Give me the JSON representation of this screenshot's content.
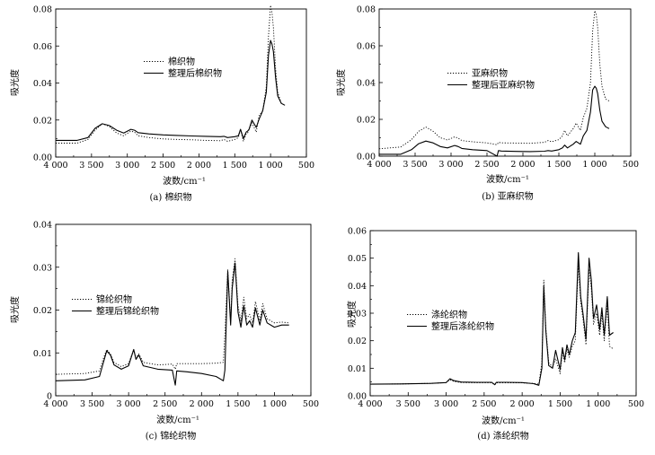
{
  "chart_data": [
    {
      "id": "a",
      "type": "line",
      "caption": "(a) 棉织物",
      "xlabel": "波数/cm⁻¹",
      "ylabel": "吸光度",
      "xlim": [
        4000,
        500
      ],
      "ylim": [
        0,
        0.08
      ],
      "xticks": [
        4000,
        3500,
        3000,
        2500,
        2000,
        1500,
        1000,
        500
      ],
      "xtick_labels": [
        "4 000",
        "3 500",
        "3 000",
        "2 500",
        "2 000",
        "1 500",
        "1 000",
        "500"
      ],
      "yticks": [
        0,
        0.02,
        0.04,
        0.06,
        0.08
      ],
      "ytick_labels": [
        "0.00",
        "0.02",
        "0.04",
        "0.06",
        "0.08"
      ],
      "legend_position": "center",
      "series": [
        {
          "name": "棉织物",
          "style": "dotted",
          "x": [
            4000,
            3700,
            3550,
            3450,
            3350,
            3250,
            3150,
            3050,
            2950,
            2900,
            2850,
            2700,
            2500,
            2300,
            2100,
            1900,
            1700,
            1650,
            1600,
            1500,
            1450,
            1420,
            1380,
            1340,
            1320,
            1300,
            1260,
            1200,
            1160,
            1110,
            1060,
            1030,
            1000,
            980,
            960,
            930,
            900,
            850,
            800
          ],
          "y": [
            0.0075,
            0.0075,
            0.0095,
            0.0145,
            0.018,
            0.0165,
            0.013,
            0.0115,
            0.014,
            0.0135,
            0.0115,
            0.0105,
            0.0098,
            0.0095,
            0.0093,
            0.009,
            0.0088,
            0.0095,
            0.0085,
            0.0095,
            0.0105,
            0.015,
            0.0085,
            0.0125,
            0.013,
            0.015,
            0.0185,
            0.0135,
            0.0225,
            0.025,
            0.038,
            0.065,
            0.082,
            0.078,
            0.07,
            0.048,
            0.035,
            0.029,
            0.028
          ]
        },
        {
          "name": "整理后棉织物",
          "style": "solid",
          "x": [
            4000,
            3700,
            3550,
            3450,
            3350,
            3250,
            3150,
            3050,
            2950,
            2900,
            2850,
            2700,
            2500,
            2300,
            2100,
            1900,
            1700,
            1650,
            1600,
            1500,
            1450,
            1420,
            1380,
            1340,
            1320,
            1300,
            1260,
            1200,
            1160,
            1110,
            1060,
            1030,
            1000,
            980,
            960,
            930,
            900,
            850,
            800
          ],
          "y": [
            0.009,
            0.009,
            0.0105,
            0.0155,
            0.018,
            0.017,
            0.0145,
            0.013,
            0.015,
            0.0145,
            0.0132,
            0.0125,
            0.012,
            0.0117,
            0.0114,
            0.0112,
            0.011,
            0.0112,
            0.0105,
            0.011,
            0.0115,
            0.015,
            0.01,
            0.0135,
            0.014,
            0.015,
            0.02,
            0.016,
            0.0205,
            0.025,
            0.035,
            0.055,
            0.063,
            0.061,
            0.057,
            0.043,
            0.033,
            0.029,
            0.028
          ]
        }
      ]
    },
    {
      "id": "b",
      "type": "line",
      "caption": "(b) 亚麻织物",
      "xlabel": "波数/cm⁻¹",
      "ylabel": "吸光度",
      "xlim": [
        4000,
        500
      ],
      "ylim": [
        0,
        0.08
      ],
      "xticks": [
        4000,
        3500,
        3000,
        2500,
        2000,
        1500,
        1000,
        500
      ],
      "xtick_labels": [
        "4 000",
        "3 500",
        "3 000",
        "2 500",
        "2 000",
        "1 500",
        "1 000",
        "500"
      ],
      "yticks": [
        0,
        0.02,
        0.04,
        0.06,
        0.08
      ],
      "ytick_labels": [
        "0.00",
        "0.02",
        "0.04",
        "0.06",
        "0.08"
      ],
      "legend_position": "center-right",
      "series": [
        {
          "name": "亚麻织物",
          "style": "dotted",
          "x": [
            4000,
            3700,
            3550,
            3450,
            3350,
            3250,
            3150,
            3050,
            2950,
            2900,
            2850,
            2700,
            2500,
            2360,
            2340,
            2300,
            2100,
            1900,
            1700,
            1650,
            1600,
            1500,
            1450,
            1420,
            1380,
            1340,
            1300,
            1260,
            1200,
            1160,
            1110,
            1060,
            1030,
            1000,
            980,
            960,
            930,
            900,
            850,
            800
          ],
          "y": [
            0.004,
            0.005,
            0.009,
            0.0135,
            0.0158,
            0.0135,
            0.01,
            0.0088,
            0.0105,
            0.0098,
            0.0085,
            0.0078,
            0.0072,
            0.0062,
            0.0075,
            0.0072,
            0.0071,
            0.007,
            0.0075,
            0.0085,
            0.0078,
            0.009,
            0.011,
            0.014,
            0.011,
            0.013,
            0.015,
            0.018,
            0.014,
            0.021,
            0.026,
            0.04,
            0.068,
            0.079,
            0.077,
            0.07,
            0.05,
            0.038,
            0.031,
            0.03
          ]
        },
        {
          "name": "整理后亚麻织物",
          "style": "solid",
          "x": [
            4000,
            3700,
            3550,
            3450,
            3350,
            3250,
            3150,
            3050,
            2950,
            2900,
            2850,
            2700,
            2500,
            2360,
            2340,
            2300,
            2100,
            1900,
            1700,
            1650,
            1600,
            1500,
            1450,
            1420,
            1380,
            1340,
            1300,
            1260,
            1200,
            1160,
            1110,
            1060,
            1030,
            1000,
            980,
            960,
            930,
            900,
            850,
            800
          ],
          "y": [
            0.001,
            0.001,
            0.0035,
            0.0068,
            0.0082,
            0.0072,
            0.0052,
            0.0045,
            0.0058,
            0.0052,
            0.0042,
            0.0035,
            0.003,
            0.0,
            0.003,
            0.0028,
            0.0026,
            0.0025,
            0.0027,
            0.003,
            0.0028,
            0.0035,
            0.0045,
            0.006,
            0.0045,
            0.0055,
            0.0065,
            0.008,
            0.0065,
            0.011,
            0.014,
            0.024,
            0.036,
            0.038,
            0.037,
            0.034,
            0.025,
            0.019,
            0.016,
            0.015
          ]
        }
      ]
    },
    {
      "id": "c",
      "type": "line",
      "caption": "(c) 锦纶织物",
      "xlabel": "波数/cm⁻¹",
      "ylabel": "吸光度",
      "xlim": [
        4000,
        500
      ],
      "ylim": [
        0,
        0.04
      ],
      "xticks": [
        4000,
        3500,
        3000,
        2500,
        2000,
        1500,
        1000,
        500
      ],
      "xtick_labels": [
        "4 000",
        "3 500",
        "3 000",
        "2 500",
        "2 000",
        "1 500",
        "1 000",
        "500"
      ],
      "yticks": [
        0,
        0.01,
        0.02,
        0.03,
        0.04
      ],
      "ytick_labels": [
        "0",
        "0.01",
        "0.02",
        "0.03",
        "0.04"
      ],
      "legend_position": "center-left",
      "series": [
        {
          "name": "锦纶织物",
          "style": "dotted",
          "x": [
            4000,
            3600,
            3400,
            3350,
            3300,
            3250,
            3200,
            3100,
            3000,
            2930,
            2900,
            2860,
            2800,
            2600,
            2400,
            2360,
            2340,
            2200,
            2000,
            1800,
            1700,
            1680,
            1640,
            1600,
            1580,
            1540,
            1500,
            1460,
            1420,
            1380,
            1340,
            1300,
            1260,
            1200,
            1160,
            1100,
            1000,
            900,
            800
          ],
          "y": [
            0.005,
            0.0052,
            0.0058,
            0.0085,
            0.0108,
            0.0098,
            0.0078,
            0.0068,
            0.0075,
            0.0108,
            0.0088,
            0.0098,
            0.0078,
            0.0072,
            0.0074,
            0.0062,
            0.0075,
            0.0075,
            0.0075,
            0.0076,
            0.0078,
            0.0145,
            0.0295,
            0.0175,
            0.027,
            0.032,
            0.021,
            0.0175,
            0.023,
            0.018,
            0.019,
            0.017,
            0.022,
            0.0175,
            0.0215,
            0.018,
            0.017,
            0.0172,
            0.017
          ]
        },
        {
          "name": "整理后锦纶织物",
          "style": "solid",
          "x": [
            4000,
            3600,
            3400,
            3350,
            3300,
            3250,
            3200,
            3100,
            3000,
            2930,
            2900,
            2860,
            2800,
            2600,
            2400,
            2360,
            2340,
            2200,
            2000,
            1800,
            1700,
            1680,
            1640,
            1600,
            1580,
            1540,
            1500,
            1460,
            1420,
            1380,
            1340,
            1300,
            1260,
            1200,
            1160,
            1100,
            1000,
            900,
            800
          ],
          "y": [
            0.0035,
            0.0037,
            0.0045,
            0.0075,
            0.0105,
            0.0095,
            0.0072,
            0.0062,
            0.007,
            0.0108,
            0.0085,
            0.0095,
            0.007,
            0.0062,
            0.006,
            0.0025,
            0.0058,
            0.0056,
            0.0052,
            0.0045,
            0.0035,
            0.006,
            0.029,
            0.0165,
            0.025,
            0.031,
            0.0195,
            0.016,
            0.021,
            0.0165,
            0.0175,
            0.016,
            0.0205,
            0.0165,
            0.02,
            0.017,
            0.016,
            0.0165,
            0.0165
          ]
        }
      ]
    },
    {
      "id": "d",
      "type": "line",
      "caption": "(d) 涤纶织物",
      "xlabel": "波数/cm⁻¹",
      "ylabel": "吸光度",
      "xlim": [
        4000,
        500
      ],
      "ylim": [
        0,
        0.06
      ],
      "xticks": [
        4000,
        3500,
        3000,
        2500,
        2000,
        1500,
        1000,
        500
      ],
      "xtick_labels": [
        "4 000",
        "3 500",
        "3 000",
        "2 500",
        "2 000",
        "1 500",
        "1 000",
        "500"
      ],
      "yticks": [
        0,
        0.01,
        0.02,
        0.03,
        0.04,
        0.05,
        0.06
      ],
      "ytick_labels": [
        "0.00",
        "0.01",
        "0.02",
        "0.03",
        "0.04",
        "0.05",
        "0.06"
      ],
      "legend_position": "center-left",
      "series": [
        {
          "name": "涤纶织物",
          "style": "dotted",
          "x": [
            4000,
            3600,
            3200,
            3000,
            2950,
            2900,
            2800,
            2600,
            2400,
            2360,
            2340,
            2200,
            2000,
            1850,
            1780,
            1740,
            1715,
            1690,
            1650,
            1600,
            1560,
            1500,
            1470,
            1440,
            1410,
            1380,
            1340,
            1300,
            1260,
            1230,
            1200,
            1160,
            1120,
            1090,
            1060,
            1020,
            980,
            950,
            920,
            880,
            850,
            800
          ],
          "y": [
            0.0042,
            0.0043,
            0.0045,
            0.0048,
            0.0058,
            0.0052,
            0.0048,
            0.0047,
            0.0047,
            0.004,
            0.0047,
            0.0047,
            0.0047,
            0.0045,
            0.0042,
            0.012,
            0.042,
            0.025,
            0.012,
            0.0105,
            0.0135,
            0.008,
            0.016,
            0.012,
            0.017,
            0.014,
            0.018,
            0.02,
            0.048,
            0.034,
            0.028,
            0.0185,
            0.046,
            0.039,
            0.026,
            0.03,
            0.022,
            0.03,
            0.02,
            0.033,
            0.018,
            0.017
          ]
        },
        {
          "name": "整理后涤纶织物",
          "style": "solid",
          "x": [
            4000,
            3600,
            3200,
            3000,
            2950,
            2900,
            2800,
            2600,
            2400,
            2360,
            2340,
            2200,
            2000,
            1850,
            1780,
            1740,
            1715,
            1690,
            1650,
            1600,
            1560,
            1500,
            1470,
            1440,
            1410,
            1380,
            1340,
            1300,
            1260,
            1230,
            1200,
            1160,
            1120,
            1090,
            1060,
            1020,
            980,
            950,
            920,
            880,
            850,
            800
          ],
          "y": [
            0.0042,
            0.0043,
            0.0045,
            0.0048,
            0.0062,
            0.0055,
            0.005,
            0.0049,
            0.0049,
            0.004,
            0.0049,
            0.0049,
            0.0048,
            0.0044,
            0.0038,
            0.01,
            0.04,
            0.024,
            0.011,
            0.01,
            0.0165,
            0.0095,
            0.0175,
            0.013,
            0.0185,
            0.015,
            0.02,
            0.023,
            0.052,
            0.036,
            0.03,
            0.0205,
            0.05,
            0.042,
            0.028,
            0.033,
            0.024,
            0.032,
            0.022,
            0.036,
            0.022,
            0.023
          ]
        }
      ]
    }
  ]
}
